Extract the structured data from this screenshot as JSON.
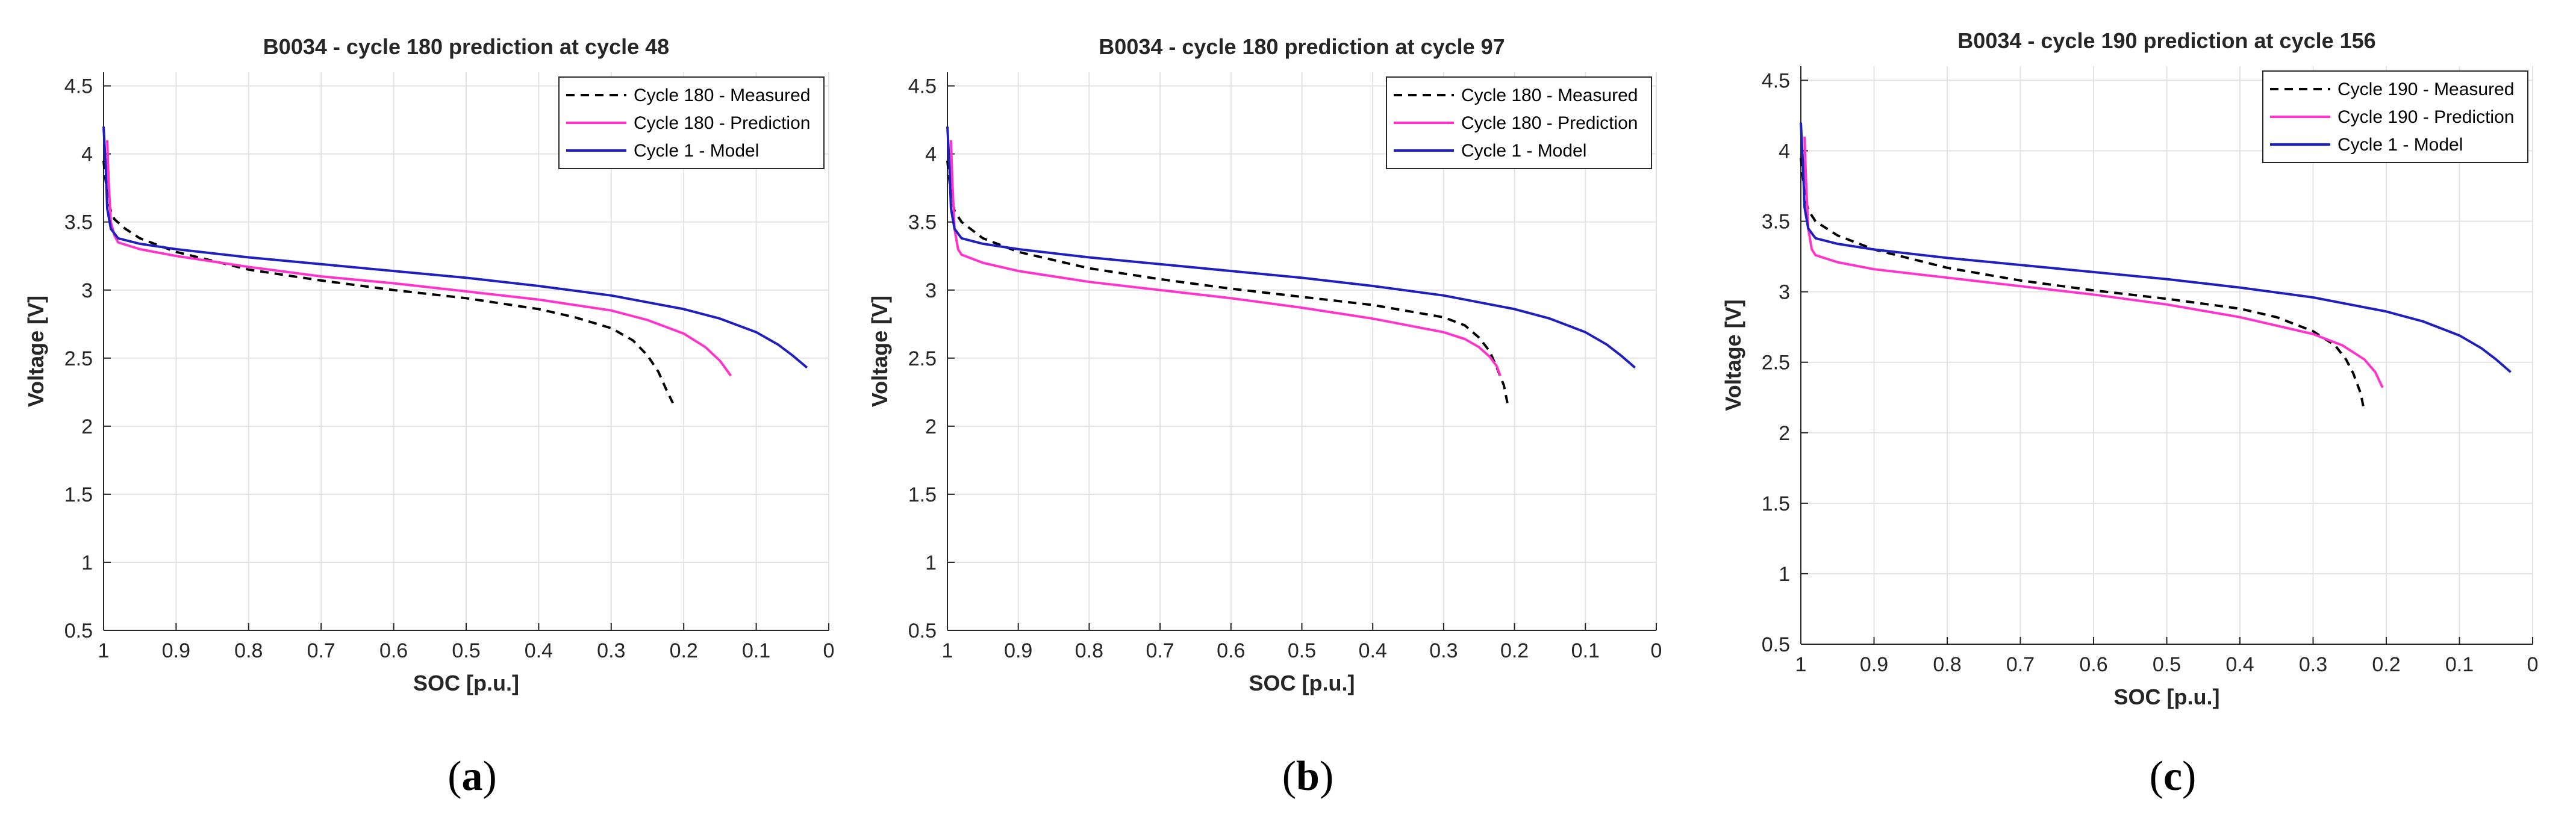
{
  "chart_data": [
    {
      "type": "line",
      "panel_label": "a",
      "title": "B0034 - cycle 180 prediction at cycle 48",
      "xlabel": "SOC [p.u.]",
      "ylabel": "Voltage [V]",
      "xlim": [
        1,
        0
      ],
      "ylim": [
        0.5,
        4.6
      ],
      "x_ticks": [
        1,
        0.9,
        0.8,
        0.7,
        0.6,
        0.5,
        0.4,
        0.3,
        0.2,
        0.1,
        0
      ],
      "x_tick_labels": [
        "1",
        "0.9",
        "0.8",
        "0.7",
        "0.6",
        "0.5",
        "0.4",
        "0.3",
        "0.2",
        "0.1",
        "0"
      ],
      "y_ticks": [
        0.5,
        1,
        1.5,
        2,
        2.5,
        3,
        3.5,
        4,
        4.5
      ],
      "y_tick_labels": [
        "0.5",
        "1",
        "1.5",
        "2",
        "2.5",
        "3",
        "3.5",
        "4",
        "4.5"
      ],
      "grid": true,
      "legend_position": "top-right",
      "series": [
        {
          "name": "Cycle 180 - Measured",
          "color": "#000000",
          "style": "dashed",
          "x": [
            1.0,
            0.995,
            0.99,
            0.985,
            0.97,
            0.95,
            0.9,
            0.8,
            0.7,
            0.6,
            0.5,
            0.4,
            0.35,
            0.3,
            0.27,
            0.25,
            0.235,
            0.225,
            0.215
          ],
          "y": [
            3.95,
            3.7,
            3.58,
            3.52,
            3.45,
            3.38,
            3.28,
            3.15,
            3.07,
            3.0,
            2.94,
            2.86,
            2.8,
            2.72,
            2.63,
            2.52,
            2.4,
            2.28,
            2.17
          ]
        },
        {
          "name": "Cycle 180 - Prediction",
          "color": "#ff33cc",
          "style": "solid",
          "x": [
            0.995,
            0.993,
            0.99,
            0.985,
            0.98,
            0.95,
            0.9,
            0.8,
            0.7,
            0.6,
            0.5,
            0.4,
            0.3,
            0.25,
            0.2,
            0.17,
            0.15,
            0.135
          ],
          "y": [
            4.1,
            3.8,
            3.5,
            3.4,
            3.35,
            3.3,
            3.25,
            3.17,
            3.1,
            3.05,
            2.99,
            2.93,
            2.85,
            2.78,
            2.68,
            2.58,
            2.48,
            2.37
          ]
        },
        {
          "name": "Cycle 1 - Model",
          "color": "#1f1fbf",
          "style": "solid",
          "x": [
            1.0,
            0.997,
            0.995,
            0.99,
            0.98,
            0.95,
            0.9,
            0.8,
            0.7,
            0.6,
            0.5,
            0.4,
            0.3,
            0.2,
            0.15,
            0.1,
            0.07,
            0.05,
            0.03
          ],
          "y": [
            4.2,
            3.9,
            3.6,
            3.45,
            3.38,
            3.34,
            3.3,
            3.24,
            3.19,
            3.14,
            3.09,
            3.03,
            2.96,
            2.86,
            2.79,
            2.69,
            2.6,
            2.52,
            2.43
          ]
        }
      ]
    },
    {
      "type": "line",
      "panel_label": "b",
      "title": "B0034 - cycle 180 prediction at cycle 97",
      "xlabel": "SOC [p.u.]",
      "ylabel": "Voltage [V]",
      "xlim": [
        1,
        0
      ],
      "ylim": [
        0.5,
        4.6
      ],
      "x_ticks": [
        1,
        0.9,
        0.8,
        0.7,
        0.6,
        0.5,
        0.4,
        0.3,
        0.2,
        0.1,
        0
      ],
      "x_tick_labels": [
        "1",
        "0.9",
        "0.8",
        "0.7",
        "0.6",
        "0.5",
        "0.4",
        "0.3",
        "0.2",
        "0.1",
        "0"
      ],
      "y_ticks": [
        0.5,
        1,
        1.5,
        2,
        2.5,
        3,
        3.5,
        4,
        4.5
      ],
      "y_tick_labels": [
        "0.5",
        "1",
        "1.5",
        "2",
        "2.5",
        "3",
        "3.5",
        "4",
        "4.5"
      ],
      "grid": true,
      "legend_position": "top-right",
      "series": [
        {
          "name": "Cycle 180 - Measured",
          "color": "#000000",
          "style": "dashed",
          "x": [
            1.0,
            0.995,
            0.99,
            0.98,
            0.95,
            0.9,
            0.8,
            0.7,
            0.6,
            0.5,
            0.4,
            0.3,
            0.27,
            0.25,
            0.235,
            0.225,
            0.215,
            0.21
          ],
          "y": [
            3.95,
            3.7,
            3.58,
            3.5,
            3.38,
            3.28,
            3.16,
            3.08,
            3.01,
            2.95,
            2.89,
            2.8,
            2.74,
            2.65,
            2.55,
            2.43,
            2.3,
            2.17
          ]
        },
        {
          "name": "Cycle 180 - Prediction",
          "color": "#ff33cc",
          "style": "solid",
          "x": [
            0.995,
            0.993,
            0.99,
            0.985,
            0.98,
            0.95,
            0.9,
            0.8,
            0.7,
            0.6,
            0.5,
            0.4,
            0.3,
            0.27,
            0.25,
            0.235,
            0.225,
            0.22
          ],
          "y": [
            4.1,
            3.8,
            3.45,
            3.3,
            3.26,
            3.2,
            3.14,
            3.06,
            3.0,
            2.94,
            2.87,
            2.79,
            2.69,
            2.64,
            2.58,
            2.51,
            2.44,
            2.37
          ]
        },
        {
          "name": "Cycle 1 - Model",
          "color": "#1f1fbf",
          "style": "solid",
          "x": [
            1.0,
            0.997,
            0.995,
            0.99,
            0.98,
            0.95,
            0.9,
            0.8,
            0.7,
            0.6,
            0.5,
            0.4,
            0.3,
            0.2,
            0.15,
            0.1,
            0.07,
            0.05,
            0.03
          ],
          "y": [
            4.2,
            3.9,
            3.6,
            3.45,
            3.38,
            3.34,
            3.3,
            3.24,
            3.19,
            3.14,
            3.09,
            3.03,
            2.96,
            2.86,
            2.79,
            2.69,
            2.6,
            2.52,
            2.43
          ]
        }
      ]
    },
    {
      "type": "line",
      "panel_label": "c",
      "title": "B0034 - cycle 190 prediction at cycle 156",
      "xlabel": "SOC [p.u.]",
      "ylabel": "Voltage [V]",
      "xlim": [
        1,
        0
      ],
      "ylim": [
        0.5,
        4.6
      ],
      "x_ticks": [
        1,
        0.9,
        0.8,
        0.7,
        0.6,
        0.5,
        0.4,
        0.3,
        0.2,
        0.1,
        0
      ],
      "x_tick_labels": [
        "1",
        "0.9",
        "0.8",
        "0.7",
        "0.6",
        "0.5",
        "0.4",
        "0.3",
        "0.2",
        "0.1",
        "0"
      ],
      "y_ticks": [
        0.5,
        1,
        1.5,
        2,
        2.5,
        3,
        3.5,
        4,
        4.5
      ],
      "y_tick_labels": [
        "0.5",
        "1",
        "1.5",
        "2",
        "2.5",
        "3",
        "3.5",
        "4",
        "4.5"
      ],
      "grid": true,
      "legend_position": "top-right",
      "series": [
        {
          "name": "Cycle 190 - Measured",
          "color": "#000000",
          "style": "dashed",
          "x": [
            1.0,
            0.995,
            0.99,
            0.98,
            0.95,
            0.9,
            0.8,
            0.7,
            0.6,
            0.5,
            0.4,
            0.35,
            0.3,
            0.27,
            0.255,
            0.245,
            0.235,
            0.23
          ],
          "y": [
            3.95,
            3.7,
            3.58,
            3.5,
            3.4,
            3.3,
            3.17,
            3.08,
            3.01,
            2.95,
            2.88,
            2.82,
            2.72,
            2.62,
            2.52,
            2.42,
            2.28,
            2.15
          ]
        },
        {
          "name": "Cycle 190 - Prediction",
          "color": "#ff33cc",
          "style": "solid",
          "x": [
            0.995,
            0.993,
            0.99,
            0.985,
            0.98,
            0.95,
            0.9,
            0.8,
            0.7,
            0.6,
            0.5,
            0.4,
            0.3,
            0.26,
            0.23,
            0.215,
            0.205
          ],
          "y": [
            4.1,
            3.8,
            3.45,
            3.3,
            3.26,
            3.21,
            3.16,
            3.1,
            3.04,
            2.98,
            2.91,
            2.82,
            2.7,
            2.62,
            2.52,
            2.43,
            2.32
          ]
        },
        {
          "name": "Cycle 1 - Model",
          "color": "#1f1fbf",
          "style": "solid",
          "x": [
            1.0,
            0.997,
            0.995,
            0.99,
            0.98,
            0.95,
            0.9,
            0.8,
            0.7,
            0.6,
            0.5,
            0.4,
            0.3,
            0.2,
            0.15,
            0.1,
            0.07,
            0.05,
            0.03
          ],
          "y": [
            4.2,
            3.9,
            3.6,
            3.45,
            3.38,
            3.34,
            3.3,
            3.24,
            3.19,
            3.14,
            3.09,
            3.03,
            2.96,
            2.86,
            2.79,
            2.69,
            2.6,
            2.52,
            2.43
          ]
        }
      ]
    }
  ]
}
